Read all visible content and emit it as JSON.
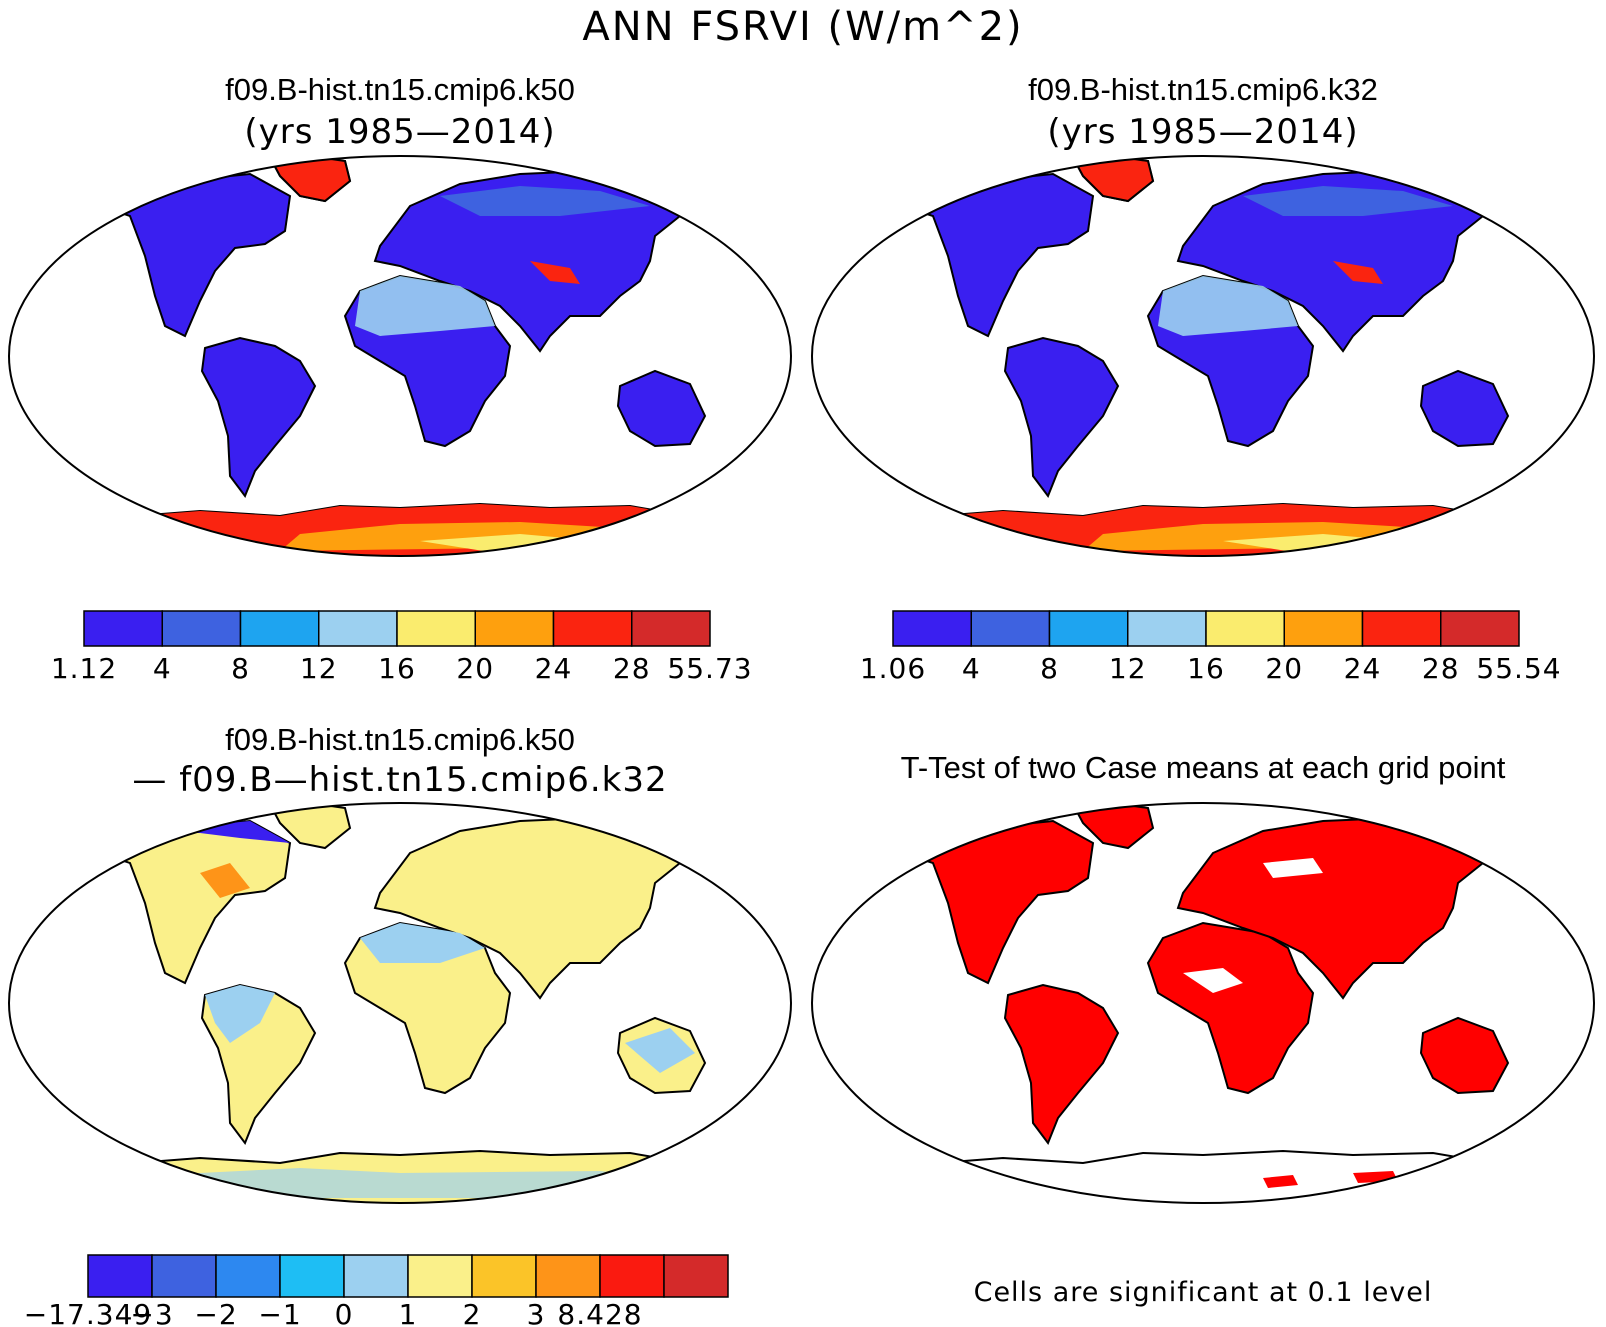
{
  "figure": {
    "title": "ANN FSRVI (W/m^2)"
  },
  "panels": [
    {
      "id": "case1",
      "name": "f09.B-hist.tn15.cmip6.k50",
      "subtitle": "(yrs 1985—2014)",
      "colorbar": {
        "colors": [
          "#3a1ff0",
          "#3e62e0",
          "#1ea4f0",
          "#9cd0f0",
          "#faec6e",
          "#fea00e",
          "#fa2410",
          "#d42a2a"
        ],
        "labels": [
          "1.12",
          "4",
          "8",
          "12",
          "16",
          "20",
          "24",
          "28",
          "55.73"
        ]
      }
    },
    {
      "id": "case2",
      "name": "f09.B-hist.tn15.cmip6.k32",
      "subtitle": "(yrs 1985—2014)",
      "colorbar": {
        "colors": [
          "#3a1ff0",
          "#3e62e0",
          "#1ea4f0",
          "#9cd0f0",
          "#faec6e",
          "#fea00e",
          "#fa2410",
          "#d42a2a"
        ],
        "labels": [
          "1.06",
          "4",
          "8",
          "12",
          "16",
          "20",
          "24",
          "28",
          "55.54"
        ]
      }
    },
    {
      "id": "diff",
      "name": "f09.B-hist.tn15.cmip6.k50",
      "subtitle": "— f09.B—hist.tn15.cmip6.k32",
      "colorbar": {
        "colors": [
          "#3a1ff0",
          "#3e62e0",
          "#2d88f0",
          "#1ebef4",
          "#9cd0f0",
          "#faf08a",
          "#fbc428",
          "#fe9418",
          "#fa1a10",
          "#d42a2a"
        ],
        "labels": [
          "−17.349",
          "−3",
          "−2",
          "−1",
          "0",
          "1",
          "2",
          "3",
          "8.428"
        ]
      }
    },
    {
      "id": "ttest",
      "name": "T-Test of two Case means at each grid point",
      "footnote": "Cells are significant at 0.1 level",
      "significant_color": "#ff0000"
    }
  ]
}
